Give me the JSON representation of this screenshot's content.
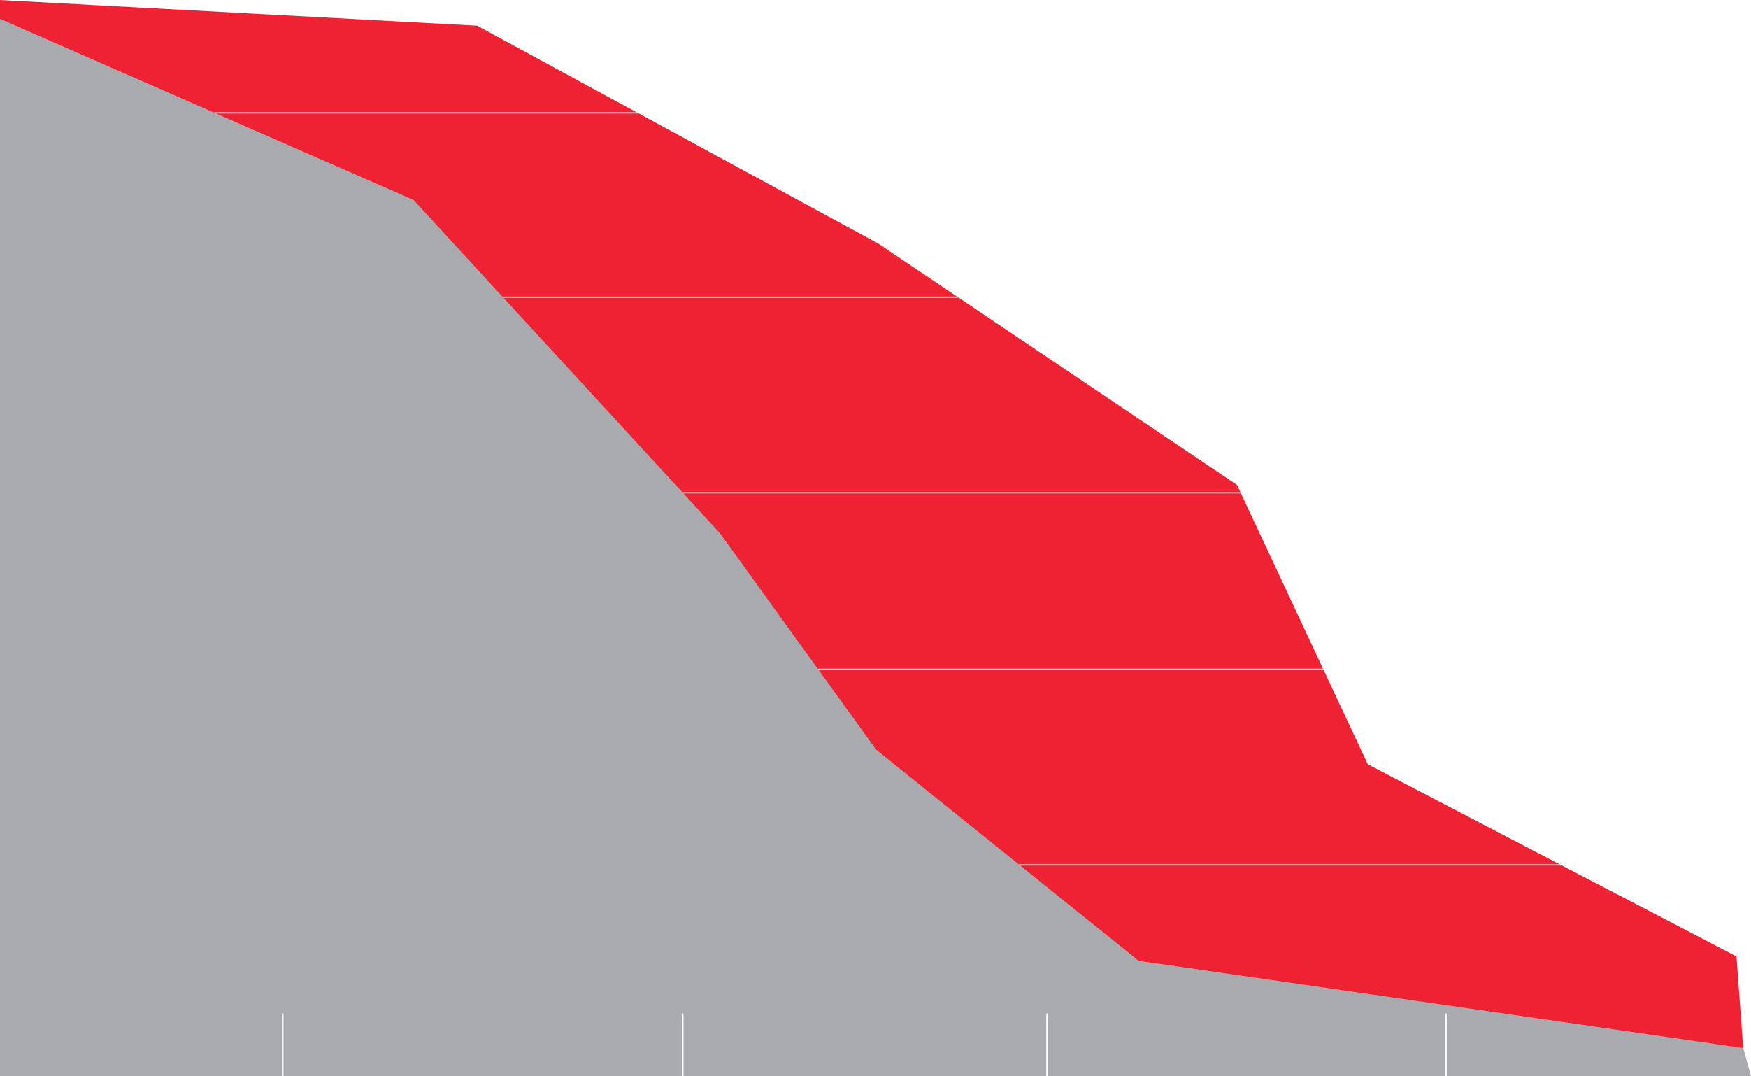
{
  "chart_data": {
    "type": "area",
    "title": "",
    "xlabel": "",
    "ylabel": "",
    "grid": false,
    "legend": "none",
    "xlim": [
      0,
      1567
    ],
    "ylim": [
      0,
      963
    ],
    "x": [
      0,
      370,
      427,
      644,
      786,
      784,
      1019,
      1107,
      1224,
      1554,
      1560,
      1567
    ],
    "series": [
      {
        "color": "#a9aaad",
        "points": [
          [
            0,
            946
          ],
          [
            370,
            784
          ],
          [
            644,
            486
          ],
          [
            784,
            292
          ],
          [
            1019,
            103
          ],
          [
            1560,
            25
          ],
          [
            1567,
            0
          ]
        ]
      },
      {
        "color": "#ee2232",
        "points": [
          [
            0,
            963
          ],
          [
            427,
            940
          ],
          [
            786,
            745
          ],
          [
            1107,
            529
          ],
          [
            1224,
            279
          ],
          [
            1554,
            107
          ],
          [
            1560,
            25
          ]
        ]
      }
    ],
    "band_lines_y": [
      862,
      697,
      522,
      364,
      189
    ],
    "x_ticks": [
      253,
      611,
      937,
      1294
    ]
  }
}
